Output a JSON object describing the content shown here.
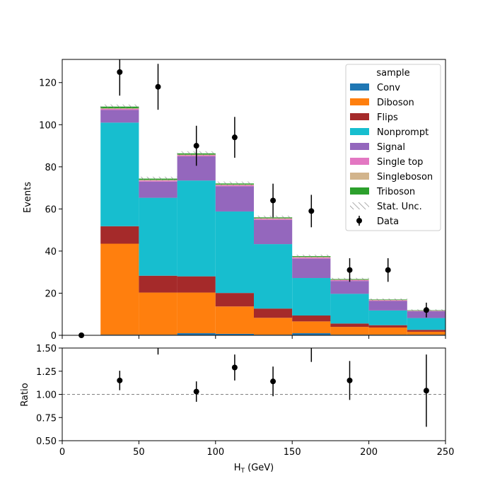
{
  "chart_data": {
    "type": "bar",
    "stacked": true,
    "bin_edges": [
      0,
      25,
      50,
      75,
      100,
      125,
      150,
      175,
      200,
      225,
      250
    ],
    "xlabel_main": "H",
    "xlabel_sub": "T",
    "xlabel_unit": " (GeV)",
    "ylabel": "Events",
    "ratio_ylabel": "Ratio",
    "xlim": [
      0,
      250
    ],
    "ylim": [
      0,
      131
    ],
    "ratio_ylim": [
      0.5,
      1.5
    ],
    "x_ticks": [
      "0",
      "50",
      "100",
      "150",
      "200",
      "250"
    ],
    "x_tick_values": [
      0,
      50,
      100,
      150,
      200,
      250
    ],
    "y_ticks": [
      "0",
      "20",
      "40",
      "60",
      "80",
      "100",
      "120"
    ],
    "y_tick_values": [
      0,
      20,
      40,
      60,
      80,
      100,
      120
    ],
    "ratio_ticks": [
      "0.50",
      "0.75",
      "1.00",
      "1.25",
      "1.50"
    ],
    "ratio_tick_values": [
      0.5,
      0.75,
      1.0,
      1.25,
      1.5
    ],
    "legend_title": "sample",
    "legend_position": "top-right",
    "series": [
      {
        "name": "Conv",
        "color": "#1f77b4",
        "values": [
          0,
          0.3,
          0.3,
          1.0,
          0.7,
          0.3,
          1.0,
          0.3,
          0.3,
          0.3
        ]
      },
      {
        "name": "Diboson",
        "color": "#ff7f0e",
        "values": [
          0,
          43.2,
          20.0,
          19.3,
          13.0,
          8.0,
          5.6,
          3.7,
          3.4,
          1.4
        ]
      },
      {
        "name": "Flips",
        "color": "#a52a2a",
        "values": [
          0,
          8.3,
          8.0,
          7.7,
          6.4,
          4.4,
          2.8,
          1.6,
          1.1,
          0.9
        ]
      },
      {
        "name": "Nonprompt",
        "color": "#17becf",
        "values": [
          0,
          49.2,
          37.0,
          45.5,
          38.7,
          30.6,
          17.8,
          14.1,
          7.0,
          5.6
        ]
      },
      {
        "name": "Signal",
        "color": "#9467bd",
        "values": [
          0,
          6.0,
          7.7,
          11.5,
          12.0,
          11.5,
          9.2,
          6.1,
          4.5,
          3.2
        ]
      },
      {
        "name": "Single top",
        "color": "#e377c2",
        "values": [
          0,
          0.5,
          0.5,
          0.5,
          0.5,
          0.5,
          0.5,
          0.4,
          0.3,
          0.2
        ]
      },
      {
        "name": "Singleboson",
        "color": "#d2b48c",
        "values": [
          0,
          0.3,
          0.3,
          0.3,
          0.3,
          0.3,
          0.3,
          0.2,
          0.2,
          0.1
        ]
      },
      {
        "name": "Triboson",
        "color": "#2ca02c",
        "values": [
          0,
          0.8,
          0.6,
          0.6,
          0.5,
          0.4,
          0.4,
          0.3,
          0.2,
          0.2
        ]
      }
    ],
    "stat_unc_label": "Stat. Unc.",
    "stat_unc": [
      0,
      1.0,
      0.9,
      1.0,
      0.9,
      0.8,
      0.7,
      0.6,
      0.5,
      0.4
    ],
    "data_label": "Data",
    "data": {
      "x": [
        12.5,
        37.5,
        62.5,
        87.5,
        112.5,
        137.5,
        162.5,
        187.5,
        212.5,
        237.5
      ],
      "y": [
        0,
        125,
        118,
        90,
        94,
        64,
        59,
        31,
        31,
        12
      ],
      "err": [
        0,
        11.2,
        10.9,
        9.5,
        9.7,
        8.0,
        7.7,
        5.6,
        5.6,
        3.5
      ]
    },
    "ratio": {
      "x": [
        37.5,
        62.5,
        87.5,
        112.5,
        137.5,
        162.5,
        187.5,
        237.5
      ],
      "y": [
        1.15,
        1.58,
        1.03,
        1.29,
        1.14,
        1.55,
        1.15,
        1.04
      ],
      "err": [
        0.105,
        0.15,
        0.11,
        0.14,
        0.16,
        0.2,
        0.21,
        0.39
      ]
    },
    "ratio_reference": 1.0
  }
}
